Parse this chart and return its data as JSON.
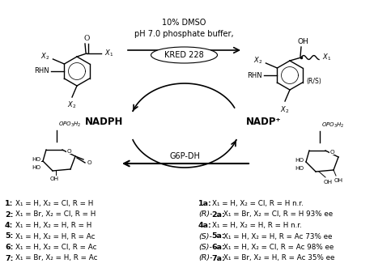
{
  "bg": "#ffffff",
  "arrow_top_text1": "10% DMSO",
  "arrow_top_text2": "pH 7.0 phosphate buffer,",
  "arrow_top_text3": "KRED 228",
  "arrow_bottom_text": "G6P-DH",
  "nadph": "NADPH",
  "nadp": "NADP⁺",
  "left_lines": [
    [
      "1",
      "X₁ = H, X₂ = Cl, R = H"
    ],
    [
      "2",
      "X₁ = Br, X₂ = Cl, R = H"
    ],
    [
      "4",
      "X₁ = H, X₂ = H, R = H"
    ],
    [
      "5",
      "X₁ = H, X₂ = H, R = Ac"
    ],
    [
      "6",
      "X₁ = H, X₂ = Cl, R = Ac"
    ],
    [
      "7",
      "X₁ = Br, X₂ = H, R = Ac"
    ]
  ],
  "right_lines_labels": [
    "1a",
    "(R)-2a",
    "4a",
    "(S)-5a",
    "(S)-6a",
    "(R)-7a"
  ],
  "right_lines_rest": [
    "X₁ = H, X₂ = Cl, R = H n.r.",
    "X₁ = Br, X₂ = Cl, R = H 93% ee",
    "X₁ = H, X₂ = H, R = H n.r.",
    "X₁ = H, X₂ = H, R = Ac 73% ee",
    "X₁ = H, X₂ = Cl, R = Ac 98% ee",
    "X₁ = Br, X₂ = H, R = Ac 35% ee"
  ]
}
